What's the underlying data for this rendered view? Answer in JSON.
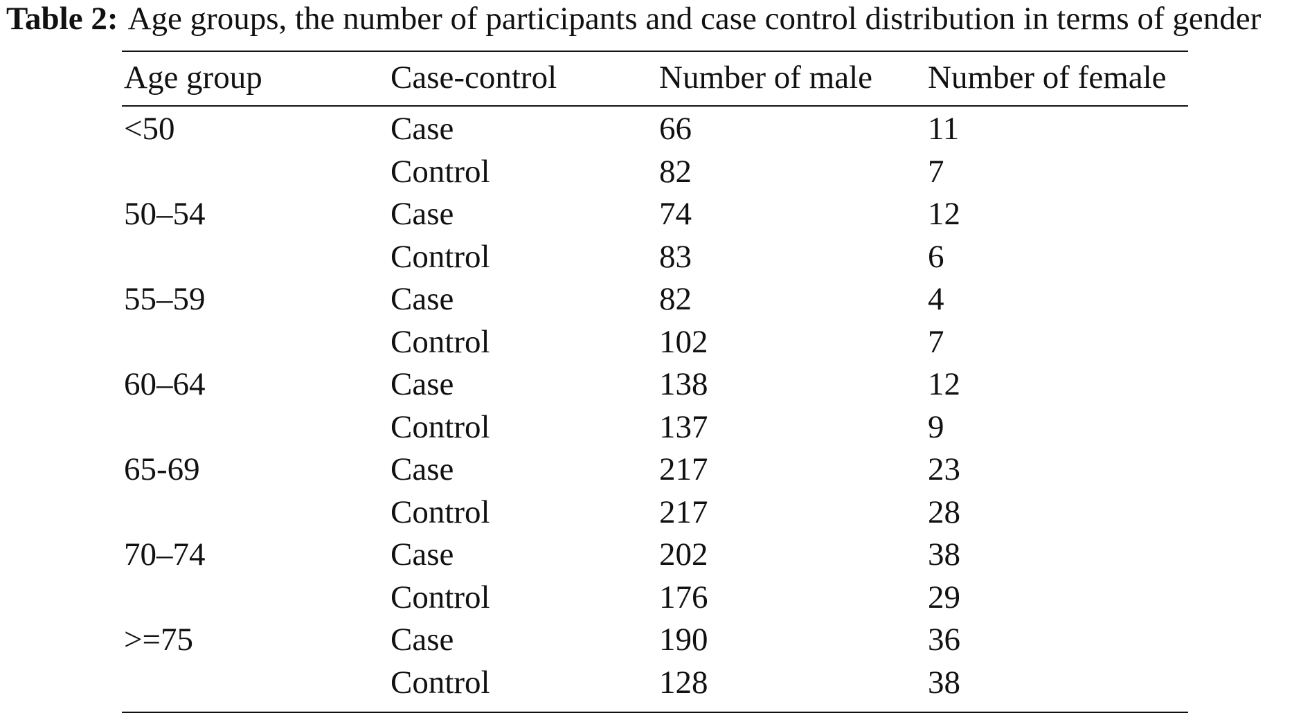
{
  "caption": {
    "label": "Table 2:",
    "text": "Age groups, the number of participants and case control distribution in terms of gender"
  },
  "table": {
    "headers": [
      "Age group",
      "Case-control",
      "Number of male",
      "Number of female"
    ],
    "rows": [
      {
        "age_group": "<50",
        "case_control": "Case",
        "male": "66",
        "female": "11"
      },
      {
        "age_group": "",
        "case_control": "Control",
        "male": "82",
        "female": "7"
      },
      {
        "age_group": "50–54",
        "case_control": "Case",
        "male": "74",
        "female": "12"
      },
      {
        "age_group": "",
        "case_control": "Control",
        "male": "83",
        "female": "6"
      },
      {
        "age_group": "55–59",
        "case_control": "Case",
        "male": "82",
        "female": "4"
      },
      {
        "age_group": "",
        "case_control": "Control",
        "male": "102",
        "female": "7"
      },
      {
        "age_group": "60–64",
        "case_control": "Case",
        "male": "138",
        "female": "12"
      },
      {
        "age_group": "",
        "case_control": "Control",
        "male": "137",
        "female": "9"
      },
      {
        "age_group": "65-69",
        "case_control": "Case",
        "male": "217",
        "female": "23"
      },
      {
        "age_group": "",
        "case_control": "Control",
        "male": "217",
        "female": "28"
      },
      {
        "age_group": "70–74",
        "case_control": "Case",
        "male": "202",
        "female": "38"
      },
      {
        "age_group": "",
        "case_control": "Control",
        "male": "176",
        "female": "29"
      },
      {
        "age_group": ">=75",
        "case_control": "Case",
        "male": "190",
        "female": "36"
      },
      {
        "age_group": "",
        "case_control": "Control",
        "male": "128",
        "female": "38"
      }
    ]
  }
}
